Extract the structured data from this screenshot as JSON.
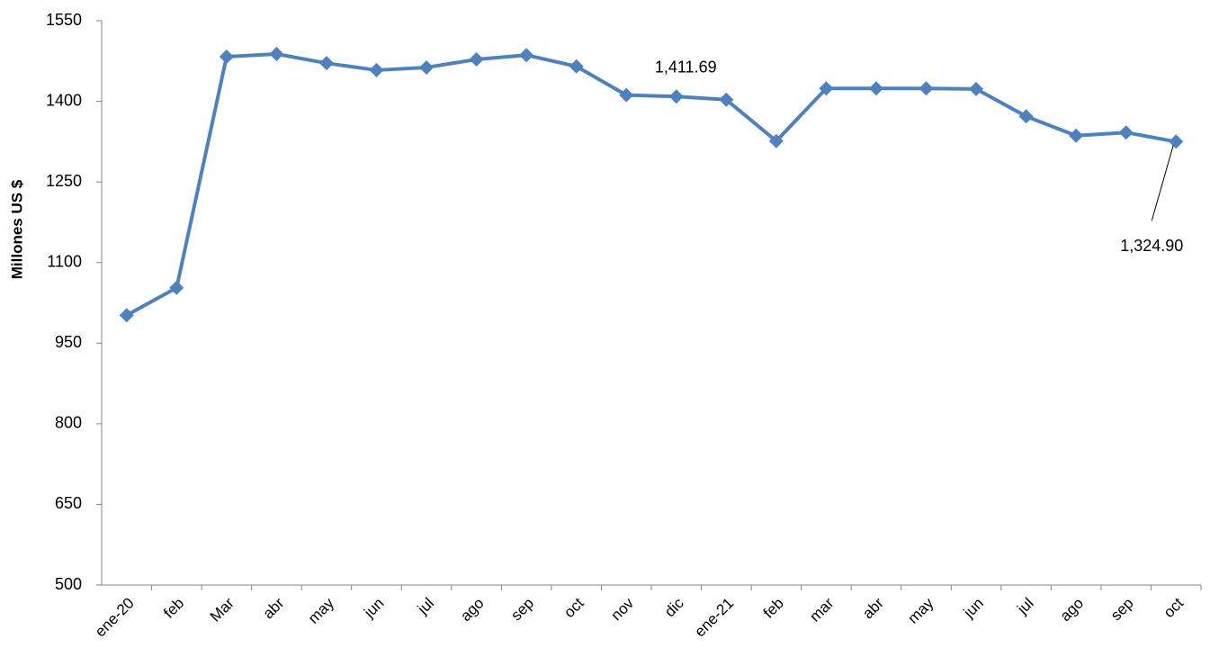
{
  "chart_data": {
    "type": "line",
    "y_label": "Millones US $",
    "categories": [
      "ene-20",
      "feb",
      "Mar",
      "abr",
      "may",
      "jun",
      "jul",
      "ago",
      "sep",
      "oct",
      "nov",
      "dic",
      "ene-21",
      "feb",
      "mar",
      "abr",
      "may",
      "jun",
      "jul",
      "ago",
      "sep",
      "oct"
    ],
    "series": [
      {
        "color": "#4f81bd",
        "values": [
          1002,
          1053,
          1483,
          1488,
          1471,
          1458,
          1463,
          1478,
          1486,
          1465,
          1411.69,
          1409,
          1403,
          1326,
          1424,
          1424,
          1424,
          1423,
          1372,
          1336,
          1342,
          1324.9
        ],
        "value_labels": [
          null,
          null,
          null,
          null,
          null,
          null,
          null,
          null,
          null,
          null,
          "1,411.69",
          null,
          null,
          null,
          null,
          null,
          null,
          null,
          null,
          null,
          null,
          "1,324.90"
        ]
      }
    ],
    "ylim": [
      500,
      1550
    ],
    "yticks": [
      500,
      650,
      800,
      950,
      1100,
      1250,
      1400,
      1550
    ],
    "grid": false
  }
}
